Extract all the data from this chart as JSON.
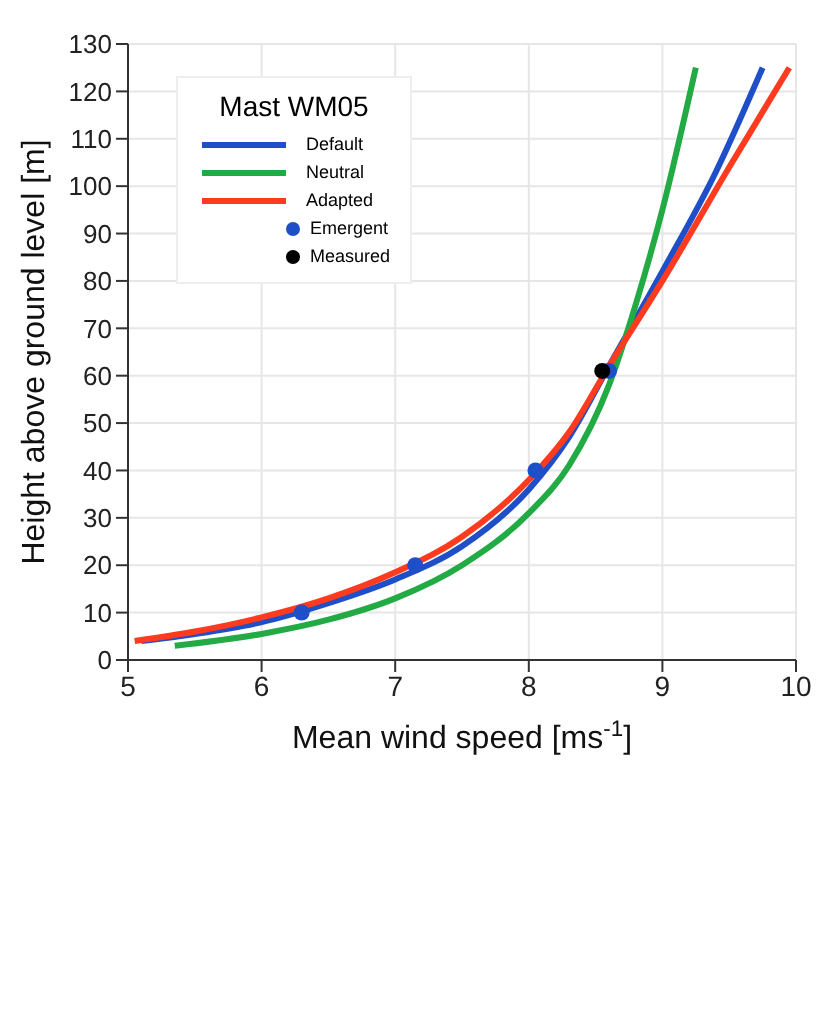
{
  "chart_data": {
    "type": "line",
    "xlabel": "Mean wind speed [ms$^{-1}$]",
    "ylabel": "Height above ground level [m]",
    "legend_title": "Mast WM05",
    "xlim": [
      5,
      10
    ],
    "xticks": [
      5,
      6,
      7,
      8,
      9,
      10
    ],
    "ylim": [
      0,
      130
    ],
    "yticks": [
      0,
      10,
      20,
      30,
      40,
      50,
      60,
      70,
      80,
      90,
      100,
      110,
      120,
      130
    ],
    "grid": true,
    "legend": "top left",
    "marker": "none",
    "line_style": "solid",
    "series": [
      {
        "name": "Default",
        "color": "#1f4fc8",
        "x": [
          5.1,
          5.5,
          6,
          6.5,
          7,
          7.5,
          8,
          8.3,
          8.6,
          9,
          9.4,
          9.75
        ],
        "values": [
          4,
          5.5,
          8,
          12,
          17,
          24,
          36,
          47,
          62,
          82,
          103,
          125
        ]
      },
      {
        "name": "Neutral",
        "color": "#22aa44",
        "x": [
          5.35,
          6,
          6.5,
          7,
          7.5,
          8,
          8.3,
          8.6,
          8.8,
          9,
          9.25
        ],
        "values": [
          3,
          5.5,
          8.5,
          13,
          20,
          31,
          41,
          58,
          75,
          95,
          125
        ]
      },
      {
        "name": "Adapted",
        "color": "#ff3b1f",
        "x": [
          5.05,
          5.5,
          6,
          6.5,
          7,
          7.5,
          8,
          8.3,
          8.6,
          9,
          9.5,
          9.95
        ],
        "values": [
          4,
          6,
          9,
          13,
          18.5,
          26,
          38,
          48,
          62,
          80,
          104,
          125
        ]
      },
      {
        "name": "Emergent",
        "type": "scatter",
        "marker": "circle",
        "color": "#1f4fc8",
        "x": [
          6.3,
          7.15,
          8.05,
          8.6
        ],
        "values": [
          10,
          20,
          40,
          61
        ]
      },
      {
        "name": "Measured",
        "type": "scatter",
        "marker": "circle",
        "color": "#000000",
        "x": [
          8.55
        ],
        "values": [
          61
        ]
      }
    ]
  }
}
